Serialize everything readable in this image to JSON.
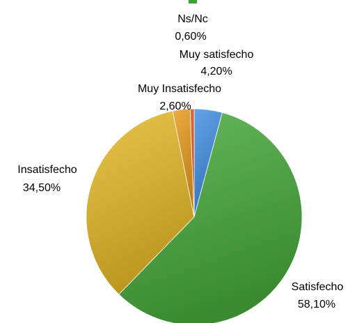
{
  "chart_data": {
    "type": "pie",
    "title": "",
    "categories": [
      "Muy satisfecho",
      "Satisfecho",
      "Insatisfecho",
      "Muy Insatisfecho",
      "Ns/Nc"
    ],
    "values": [
      4.2,
      58.1,
      34.5,
      2.6,
      0.6
    ],
    "labels": [
      "4,20%",
      "58,10%",
      "34,50%",
      "2,60%",
      "0,60%"
    ],
    "colors": [
      "#3f8ee0",
      "#46a83a",
      "#e4b826",
      "#e89a1a",
      "#e0501c"
    ],
    "start": "12 o'clock",
    "direction": "clockwise",
    "legend": "none"
  }
}
